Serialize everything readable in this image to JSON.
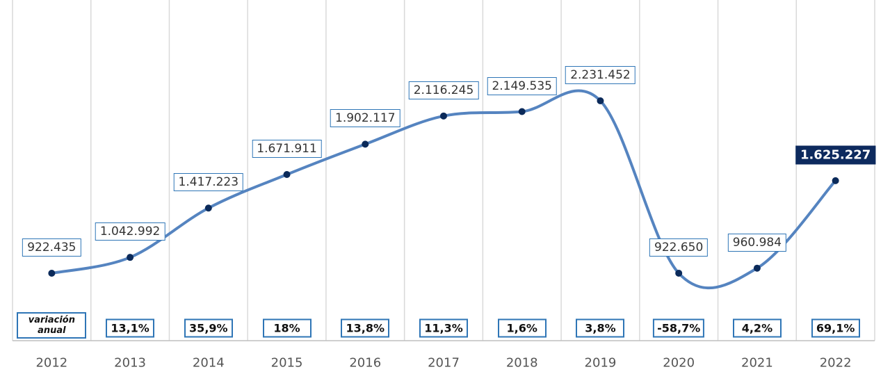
{
  "chart_data": {
    "type": "line",
    "categories": [
      "2012",
      "2013",
      "2014",
      "2015",
      "2016",
      "2017",
      "2018",
      "2019",
      "2020",
      "2021",
      "2022"
    ],
    "series": [
      {
        "color": "#5584c0",
        "values": [
          922435,
          1042992,
          1417223,
          1671911,
          1902117,
          2116245,
          2149535,
          2231452,
          922650,
          960984,
          1625227
        ],
        "value_labels": [
          "922.435",
          "1.042.992",
          "1.417.223",
          "1.671.911",
          "1.902.117",
          "2.116.245",
          "2.149.535",
          "2.231.452",
          "922.650",
          "960.984",
          "1.625.227"
        ]
      }
    ],
    "annual_change": {
      "label": "variación anual",
      "values": [
        null,
        13.1,
        35.9,
        18,
        13.8,
        11.3,
        1.6,
        3.8,
        -58.7,
        4.2,
        69.1
      ],
      "value_labels": [
        null,
        "13,1%",
        "35,9%",
        "18%",
        "13,8%",
        "11,3%",
        "1,6%",
        "3,8%",
        "-58,7%",
        "4,2%",
        "69,1%"
      ]
    },
    "grid": true
  }
}
